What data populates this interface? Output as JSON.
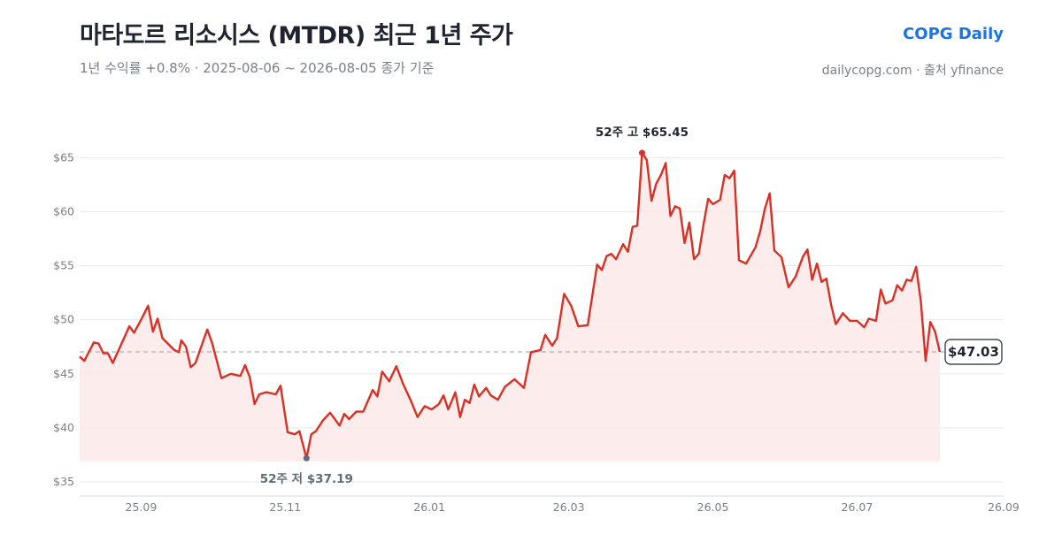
{
  "header": {
    "title": "마타도르 리소시스 (MTDR) 최근 1년 주가",
    "subtitle": "1년 수익률 +0.8%  ·  2025-08-06 ~ 2026-08-05 종가 기준",
    "brand": "COPG Daily",
    "source": "dailycopg.com · 출처 yfinance"
  },
  "colors": {
    "line": "#d93025",
    "area": "#fbe9e7",
    "low_marker": "#5f6b7a",
    "grid": "#e6e8eb",
    "brand": "#1a73e8"
  },
  "chart_data": {
    "type": "line",
    "ylim": [
      35,
      66.5
    ],
    "yticks": [
      35,
      40,
      45,
      50,
      55,
      60,
      65
    ],
    "ytick_labels": [
      "$35",
      "$40",
      "$45",
      "$50",
      "$55",
      "$60",
      "$65"
    ],
    "xlim": [
      "2025-08-06",
      "2026-09-01"
    ],
    "xticks": [
      "2025-09-01",
      "2025-11-01",
      "2026-01-01",
      "2026-03-01",
      "2026-05-01",
      "2026-07-01",
      "2026-09-01"
    ],
    "xtick_labels": [
      "25.09",
      "25.11",
      "26.01",
      "26.03",
      "26.05",
      "26.07",
      "26.09"
    ],
    "grid": true,
    "reference_line": {
      "value": 47.03,
      "style": "dashed"
    },
    "last_label": "$47.03",
    "high": {
      "date": "2026-04-01",
      "value": 65.45,
      "label": "52주 고 $65.45"
    },
    "low": {
      "date": "2025-11-10",
      "value": 37.19,
      "label": "52주 저 $37.19"
    },
    "series": [
      {
        "x": [
          "2025-08-06",
          "2025-08-08",
          "2025-08-12",
          "2025-08-14",
          "2025-08-16",
          "2025-08-18",
          "2025-08-20",
          "2025-08-25",
          "2025-08-27",
          "2025-08-29",
          "2025-09-01",
          "2025-09-04",
          "2025-09-06",
          "2025-09-08",
          "2025-09-10",
          "2025-09-15",
          "2025-09-17",
          "2025-09-18",
          "2025-09-20",
          "2025-09-22",
          "2025-09-24",
          "2025-09-29",
          "2025-10-01",
          "2025-10-05",
          "2025-10-09",
          "2025-10-13",
          "2025-10-15",
          "2025-10-17",
          "2025-10-19",
          "2025-10-21",
          "2025-10-24",
          "2025-10-28",
          "2025-10-30",
          "2025-11-02",
          "2025-11-05",
          "2025-11-07",
          "2025-11-10",
          "2025-11-12",
          "2025-11-14",
          "2025-11-17",
          "2025-11-20",
          "2025-11-24",
          "2025-11-26",
          "2025-11-28",
          "2025-12-01",
          "2025-12-04",
          "2025-12-08",
          "2025-12-10",
          "2025-12-12",
          "2025-12-15",
          "2025-12-18",
          "2025-12-21",
          "2025-12-24",
          "2025-12-27",
          "2025-12-30",
          "2026-01-02",
          "2026-01-05",
          "2026-01-07",
          "2026-01-09",
          "2026-01-12",
          "2026-01-14",
          "2026-01-16",
          "2026-01-18",
          "2026-01-20",
          "2026-01-22",
          "2026-01-25",
          "2026-01-27",
          "2026-01-30",
          "2026-02-02",
          "2026-02-06",
          "2026-02-10",
          "2026-02-13",
          "2026-02-17",
          "2026-02-19",
          "2026-02-22",
          "2026-02-24",
          "2026-02-27",
          "2026-03-02",
          "2026-03-05",
          "2026-03-09",
          "2026-03-11",
          "2026-03-13",
          "2026-03-15",
          "2026-03-17",
          "2026-03-19",
          "2026-03-21",
          "2026-03-24",
          "2026-03-26",
          "2026-03-28",
          "2026-03-30",
          "2026-04-01",
          "2026-04-03",
          "2026-04-05",
          "2026-04-07",
          "2026-04-09",
          "2026-04-11",
          "2026-04-13",
          "2026-04-15",
          "2026-04-17",
          "2026-04-19",
          "2026-04-21",
          "2026-04-23",
          "2026-04-25",
          "2026-04-27",
          "2026-04-29",
          "2026-05-01",
          "2026-05-04",
          "2026-05-06",
          "2026-05-08",
          "2026-05-10",
          "2026-05-12",
          "2026-05-15",
          "2026-05-19",
          "2026-05-21",
          "2026-05-23",
          "2026-05-25",
          "2026-05-27",
          "2026-05-30",
          "2026-06-02",
          "2026-06-05",
          "2026-06-08",
          "2026-06-10",
          "2026-06-12",
          "2026-06-14",
          "2026-06-16",
          "2026-06-18",
          "2026-06-20",
          "2026-06-22",
          "2026-06-25",
          "2026-06-28",
          "2026-07-01",
          "2026-07-04",
          "2026-07-06",
          "2026-07-09",
          "2026-07-11",
          "2026-07-13",
          "2026-07-16",
          "2026-07-18",
          "2026-07-20",
          "2026-07-22",
          "2026-07-24",
          "2026-07-26",
          "2026-07-28",
          "2026-07-30",
          "2026-08-01",
          "2026-08-03",
          "2026-08-05"
        ],
        "values": [
          46.6,
          46.2,
          47.9,
          47.8,
          46.9,
          46.9,
          46.0,
          48.4,
          49.4,
          48.8,
          50.0,
          51.3,
          48.9,
          50.1,
          48.3,
          47.2,
          47.0,
          48.1,
          47.5,
          45.6,
          46.0,
          49.1,
          47.9,
          44.6,
          45.0,
          44.8,
          45.8,
          44.7,
          42.2,
          43.1,
          43.3,
          43.1,
          43.9,
          39.6,
          39.4,
          39.7,
          37.19,
          39.4,
          39.7,
          40.7,
          41.4,
          40.2,
          41.3,
          40.8,
          41.5,
          41.5,
          43.5,
          42.9,
          45.2,
          44.3,
          45.7,
          44.0,
          42.6,
          41.0,
          42.0,
          41.7,
          42.2,
          43.0,
          41.7,
          43.3,
          41.0,
          42.6,
          42.3,
          44.0,
          42.9,
          43.7,
          43.0,
          42.6,
          43.8,
          44.5,
          43.7,
          47.0,
          47.2,
          48.6,
          47.6,
          48.3,
          52.4,
          51.3,
          49.4,
          49.5,
          52.3,
          55.1,
          54.6,
          55.9,
          56.1,
          55.6,
          57.0,
          56.3,
          58.6,
          58.7,
          65.45,
          64.8,
          61.0,
          62.6,
          63.4,
          64.5,
          59.6,
          60.5,
          60.3,
          57.1,
          59.0,
          55.6,
          56.1,
          58.8,
          61.2,
          60.7,
          61.1,
          63.4,
          63.1,
          63.8,
          55.5,
          55.2,
          56.7,
          58.2,
          60.3,
          61.7,
          56.4,
          55.8,
          53.0,
          54.0,
          55.8,
          56.5,
          53.7,
          55.2,
          53.5,
          53.8,
          51.4,
          49.6,
          50.6,
          49.9,
          49.9,
          49.3,
          50.1,
          49.9,
          52.8,
          51.5,
          51.8,
          53.2,
          52.7,
          53.7,
          53.6,
          54.9,
          51.7,
          46.2,
          49.8,
          48.9,
          47.03
        ]
      }
    ]
  }
}
